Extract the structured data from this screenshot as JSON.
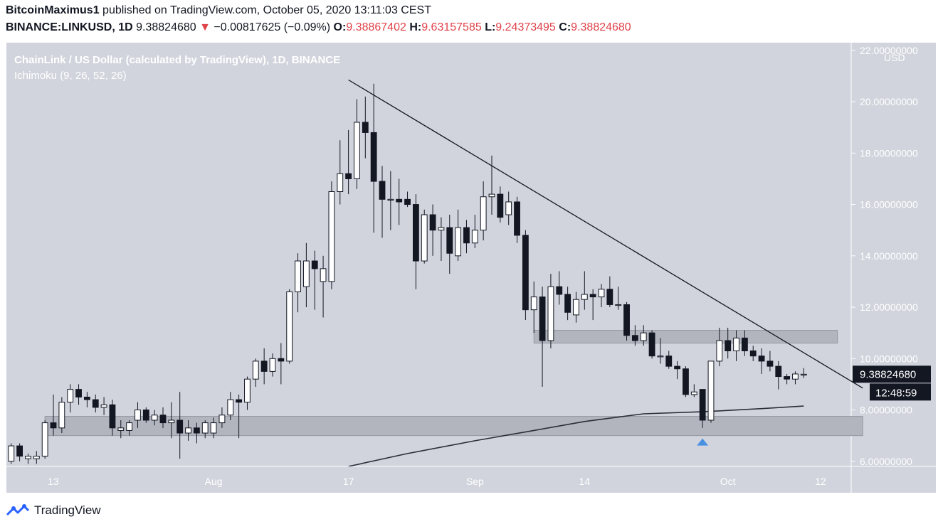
{
  "header": {
    "author": "BitcoinMaximus1",
    "published_text": "published on TradingView.com, October 05, 2020 13:11:03 CEST",
    "symbol": "BINANCE:LINKUSD, 1D",
    "last_price": "9.38824680",
    "change_arrow": "▼",
    "change": "−0.00817625 (−0.09%)",
    "open_label": "O:",
    "open": "9.38867402",
    "high_label": "H:",
    "high": "9.63157585",
    "low_label": "L:",
    "low": "9.24373495",
    "close_label": "C:",
    "close": "9.38824680"
  },
  "colors": {
    "panel_bg": "#d1d4dc",
    "up_candle": "#ffffff",
    "down_candle": "#131722",
    "zone_fill": "#b2b5be",
    "accent_red": "#e0424a",
    "arrow_blue": "#4a90e2",
    "price_label_bg": "#131722"
  },
  "footer": {
    "brand": "TradingView",
    "icon": "tradingview-logo-icon"
  },
  "chart_data": {
    "type": "candlestick",
    "title": "ChainLink / US Dollar (calculated by TradingView), 1D, BINANCE",
    "subtitle": "Ichimoku (9, 26, 52, 26)",
    "currency_label": "USD",
    "ylim": [
      5.8,
      22.3
    ],
    "y_ticks": [
      6,
      8,
      10,
      12,
      14,
      16,
      18,
      20,
      22
    ],
    "y_tick_labels": [
      "6.00000000",
      "8.00000000",
      "10.00000000",
      "12.00000000",
      "14.00000000",
      "16.00000000",
      "18.00000000",
      "20.00000000",
      "22.00000000"
    ],
    "x_ticks": [
      {
        "label": "13",
        "date": "2020-07-13"
      },
      {
        "label": "Aug",
        "date": "2020-08-01"
      },
      {
        "label": "17",
        "date": "2020-08-17"
      },
      {
        "label": "Sep",
        "date": "2020-09-01"
      },
      {
        "label": "14",
        "date": "2020-09-14"
      },
      {
        "label": "Oct",
        "date": "2020-10-01"
      },
      {
        "label": "12",
        "date": "2020-10-12"
      }
    ],
    "candles": [
      {
        "date": "2020-07-08",
        "o": 6.0,
        "h": 6.7,
        "l": 5.9,
        "c": 6.6
      },
      {
        "date": "2020-07-09",
        "o": 6.6,
        "h": 6.7,
        "l": 6.0,
        "c": 6.2
      },
      {
        "date": "2020-07-10",
        "o": 6.1,
        "h": 6.3,
        "l": 5.9,
        "c": 6.2
      },
      {
        "date": "2020-07-11",
        "o": 6.1,
        "h": 6.4,
        "l": 5.9,
        "c": 6.2
      },
      {
        "date": "2020-07-12",
        "o": 6.2,
        "h": 7.6,
        "l": 6.1,
        "c": 7.5
      },
      {
        "date": "2020-07-13",
        "o": 7.5,
        "h": 8.6,
        "l": 7.0,
        "c": 7.3
      },
      {
        "date": "2020-07-14",
        "o": 7.3,
        "h": 8.5,
        "l": 7.1,
        "c": 8.3
      },
      {
        "date": "2020-07-15",
        "o": 8.3,
        "h": 9.0,
        "l": 7.9,
        "c": 8.8
      },
      {
        "date": "2020-07-16",
        "o": 8.8,
        "h": 9.0,
        "l": 8.2,
        "c": 8.5
      },
      {
        "date": "2020-07-17",
        "o": 8.5,
        "h": 8.7,
        "l": 8.1,
        "c": 8.4
      },
      {
        "date": "2020-07-18",
        "o": 8.4,
        "h": 8.6,
        "l": 7.9,
        "c": 8.1
      },
      {
        "date": "2020-07-19",
        "o": 8.1,
        "h": 8.5,
        "l": 7.8,
        "c": 8.2
      },
      {
        "date": "2020-07-20",
        "o": 8.2,
        "h": 8.4,
        "l": 7.0,
        "c": 7.3
      },
      {
        "date": "2020-07-21",
        "o": 7.2,
        "h": 7.6,
        "l": 6.9,
        "c": 7.3
      },
      {
        "date": "2020-07-22",
        "o": 7.2,
        "h": 7.6,
        "l": 7.0,
        "c": 7.5
      },
      {
        "date": "2020-07-23",
        "o": 7.6,
        "h": 8.3,
        "l": 7.3,
        "c": 8.0
      },
      {
        "date": "2020-07-24",
        "o": 8.0,
        "h": 8.1,
        "l": 7.5,
        "c": 7.6
      },
      {
        "date": "2020-07-25",
        "o": 7.6,
        "h": 8.0,
        "l": 7.4,
        "c": 7.8
      },
      {
        "date": "2020-07-26",
        "o": 7.8,
        "h": 8.1,
        "l": 7.3,
        "c": 7.5
      },
      {
        "date": "2020-07-27",
        "o": 7.5,
        "h": 8.3,
        "l": 6.9,
        "c": 7.6
      },
      {
        "date": "2020-07-28",
        "o": 7.6,
        "h": 8.7,
        "l": 6.1,
        "c": 7.1
      },
      {
        "date": "2020-07-29",
        "o": 7.1,
        "h": 7.6,
        "l": 6.8,
        "c": 7.3
      },
      {
        "date": "2020-07-30",
        "o": 7.3,
        "h": 7.5,
        "l": 6.7,
        "c": 7.1
      },
      {
        "date": "2020-07-31",
        "o": 7.1,
        "h": 7.6,
        "l": 6.9,
        "c": 7.5
      },
      {
        "date": "2020-08-01",
        "o": 7.1,
        "h": 7.7,
        "l": 6.9,
        "c": 7.5
      },
      {
        "date": "2020-08-02",
        "o": 7.5,
        "h": 8.1,
        "l": 7.3,
        "c": 7.8
      },
      {
        "date": "2020-08-03",
        "o": 7.8,
        "h": 8.7,
        "l": 7.6,
        "c": 8.4
      },
      {
        "date": "2020-08-04",
        "o": 8.4,
        "h": 8.6,
        "l": 6.9,
        "c": 8.3
      },
      {
        "date": "2020-08-05",
        "o": 8.3,
        "h": 9.3,
        "l": 8.0,
        "c": 9.2
      },
      {
        "date": "2020-08-06",
        "o": 9.2,
        "h": 10.0,
        "l": 8.9,
        "c": 9.9
      },
      {
        "date": "2020-08-07",
        "o": 9.9,
        "h": 10.4,
        "l": 9.0,
        "c": 9.5
      },
      {
        "date": "2020-08-08",
        "o": 9.5,
        "h": 10.2,
        "l": 9.3,
        "c": 10.0
      },
      {
        "date": "2020-08-09",
        "o": 10.0,
        "h": 10.6,
        "l": 9.0,
        "c": 9.9
      },
      {
        "date": "2020-08-10",
        "o": 9.9,
        "h": 12.7,
        "l": 9.8,
        "c": 12.6
      },
      {
        "date": "2020-08-11",
        "o": 12.6,
        "h": 14.1,
        "l": 11.8,
        "c": 13.8
      },
      {
        "date": "2020-08-12",
        "o": 12.8,
        "h": 14.5,
        "l": 12.0,
        "c": 13.8
      },
      {
        "date": "2020-08-13",
        "o": 13.8,
        "h": 14.2,
        "l": 11.9,
        "c": 13.5
      },
      {
        "date": "2020-08-14",
        "o": 13.0,
        "h": 14.0,
        "l": 11.6,
        "c": 13.5
      },
      {
        "date": "2020-08-15",
        "o": 13.0,
        "h": 16.9,
        "l": 12.7,
        "c": 16.5
      },
      {
        "date": "2020-08-16",
        "o": 16.5,
        "h": 18.5,
        "l": 16.0,
        "c": 17.2
      },
      {
        "date": "2020-08-17",
        "o": 17.2,
        "h": 18.9,
        "l": 16.4,
        "c": 17.0
      },
      {
        "date": "2020-08-18",
        "o": 17.0,
        "h": 20.1,
        "l": 16.6,
        "c": 19.2
      },
      {
        "date": "2020-08-19",
        "o": 19.2,
        "h": 20.2,
        "l": 17.8,
        "c": 18.8
      },
      {
        "date": "2020-08-20",
        "o": 18.8,
        "h": 20.7,
        "l": 14.9,
        "c": 16.9
      },
      {
        "date": "2020-08-21",
        "o": 16.9,
        "h": 17.5,
        "l": 14.7,
        "c": 16.2
      },
      {
        "date": "2020-08-22",
        "o": 16.2,
        "h": 17.3,
        "l": 15.0,
        "c": 16.2
      },
      {
        "date": "2020-08-23",
        "o": 16.2,
        "h": 17.0,
        "l": 15.2,
        "c": 16.1
      },
      {
        "date": "2020-08-24",
        "o": 16.2,
        "h": 16.5,
        "l": 15.9,
        "c": 16.0
      },
      {
        "date": "2020-08-25",
        "o": 16.0,
        "h": 16.4,
        "l": 12.7,
        "c": 13.8
      },
      {
        "date": "2020-08-26",
        "o": 13.8,
        "h": 15.8,
        "l": 13.7,
        "c": 15.6
      },
      {
        "date": "2020-08-27",
        "o": 15.6,
        "h": 16.0,
        "l": 14.0,
        "c": 15.0
      },
      {
        "date": "2020-08-28",
        "o": 15.0,
        "h": 15.5,
        "l": 13.8,
        "c": 15.1
      },
      {
        "date": "2020-08-29",
        "o": 15.1,
        "h": 15.6,
        "l": 13.3,
        "c": 14.1
      },
      {
        "date": "2020-08-30",
        "o": 14.0,
        "h": 15.8,
        "l": 13.8,
        "c": 15.1
      },
      {
        "date": "2020-08-31",
        "o": 15.1,
        "h": 15.4,
        "l": 14.1,
        "c": 14.5
      },
      {
        "date": "2020-09-01",
        "o": 14.5,
        "h": 15.6,
        "l": 14.3,
        "c": 15.0
      },
      {
        "date": "2020-09-02",
        "o": 15.0,
        "h": 16.9,
        "l": 14.6,
        "c": 16.3
      },
      {
        "date": "2020-09-03",
        "o": 16.3,
        "h": 17.9,
        "l": 15.6,
        "c": 16.4
      },
      {
        "date": "2020-09-04",
        "o": 16.4,
        "h": 16.7,
        "l": 15.3,
        "c": 15.5
      },
      {
        "date": "2020-09-05",
        "o": 15.6,
        "h": 16.5,
        "l": 15.2,
        "c": 16.1
      },
      {
        "date": "2020-09-06",
        "o": 16.1,
        "h": 16.3,
        "l": 14.5,
        "c": 14.8
      },
      {
        "date": "2020-09-07",
        "o": 14.8,
        "h": 15.0,
        "l": 11.5,
        "c": 11.9
      },
      {
        "date": "2020-09-08",
        "o": 11.9,
        "h": 13.0,
        "l": 11.0,
        "c": 12.4
      },
      {
        "date": "2020-09-09",
        "o": 12.4,
        "h": 12.8,
        "l": 8.9,
        "c": 10.7
      },
      {
        "date": "2020-09-10",
        "o": 10.7,
        "h": 13.3,
        "l": 10.4,
        "c": 12.8
      },
      {
        "date": "2020-09-11",
        "o": 12.8,
        "h": 13.4,
        "l": 12.1,
        "c": 12.5
      },
      {
        "date": "2020-09-12",
        "o": 12.5,
        "h": 12.8,
        "l": 11.5,
        "c": 11.8
      },
      {
        "date": "2020-09-13",
        "o": 11.7,
        "h": 12.6,
        "l": 11.4,
        "c": 12.3
      },
      {
        "date": "2020-09-14",
        "o": 12.3,
        "h": 13.4,
        "l": 11.9,
        "c": 12.5
      },
      {
        "date": "2020-09-15",
        "o": 12.5,
        "h": 12.7,
        "l": 11.5,
        "c": 12.4
      },
      {
        "date": "2020-09-16",
        "o": 12.4,
        "h": 12.9,
        "l": 12.0,
        "c": 12.7
      },
      {
        "date": "2020-09-17",
        "o": 12.7,
        "h": 13.2,
        "l": 12.0,
        "c": 12.1
      },
      {
        "date": "2020-09-18",
        "o": 12.1,
        "h": 12.8,
        "l": 11.9,
        "c": 12.1
      },
      {
        "date": "2020-09-19",
        "o": 12.1,
        "h": 12.2,
        "l": 10.7,
        "c": 10.9
      },
      {
        "date": "2020-09-20",
        "o": 10.9,
        "h": 11.3,
        "l": 10.5,
        "c": 10.7
      },
      {
        "date": "2020-09-21",
        "o": 10.7,
        "h": 11.3,
        "l": 10.5,
        "c": 11.0
      },
      {
        "date": "2020-09-22",
        "o": 11.0,
        "h": 11.1,
        "l": 10.0,
        "c": 10.1
      },
      {
        "date": "2020-09-23",
        "o": 10.1,
        "h": 10.8,
        "l": 9.8,
        "c": 10.1
      },
      {
        "date": "2020-09-24",
        "o": 10.1,
        "h": 10.3,
        "l": 9.6,
        "c": 9.7
      },
      {
        "date": "2020-09-25",
        "o": 9.7,
        "h": 9.9,
        "l": 9.2,
        "c": 9.6
      },
      {
        "date": "2020-09-26",
        "o": 9.6,
        "h": 9.7,
        "l": 8.5,
        "c": 8.6
      },
      {
        "date": "2020-09-27",
        "o": 8.6,
        "h": 9.0,
        "l": 8.5,
        "c": 8.7
      },
      {
        "date": "2020-09-28",
        "o": 8.8,
        "h": 8.8,
        "l": 7.3,
        "c": 7.6
      },
      {
        "date": "2020-09-29",
        "o": 7.6,
        "h": 9.9,
        "l": 7.5,
        "c": 9.9
      },
      {
        "date": "2020-09-30",
        "o": 9.9,
        "h": 11.2,
        "l": 9.7,
        "c": 10.7
      },
      {
        "date": "2020-10-01",
        "o": 10.7,
        "h": 11.2,
        "l": 10.0,
        "c": 10.3
      },
      {
        "date": "2020-10-02",
        "o": 10.3,
        "h": 11.1,
        "l": 9.9,
        "c": 10.8
      },
      {
        "date": "2020-10-03",
        "o": 10.8,
        "h": 11.1,
        "l": 10.1,
        "c": 10.3
      },
      {
        "date": "2020-10-04",
        "o": 10.3,
        "h": 10.5,
        "l": 9.9,
        "c": 10.1
      },
      {
        "date": "2020-10-05",
        "o": 10.1,
        "h": 10.4,
        "l": 9.4,
        "c": 9.9
      },
      {
        "date": "2020-10-06",
        "o": 9.9,
        "h": 10.3,
        "l": 9.5,
        "c": 9.7
      },
      {
        "date": "2020-10-07",
        "o": 9.7,
        "h": 9.9,
        "l": 8.8,
        "c": 9.3
      },
      {
        "date": "2020-10-08",
        "o": 9.3,
        "h": 9.4,
        "l": 9.0,
        "c": 9.2
      },
      {
        "date": "2020-10-09",
        "o": 9.2,
        "h": 9.5,
        "l": 9.0,
        "c": 9.4
      },
      {
        "date": "2020-10-10",
        "o": 9.39,
        "h": 9.63,
        "l": 9.24,
        "c": 9.39
      }
    ],
    "zones": [
      {
        "start": "2020-07-12",
        "end": "2020-10-17",
        "low": 7.0,
        "high": 7.75
      },
      {
        "start": "2020-09-08",
        "end": "2020-10-14",
        "low": 10.6,
        "high": 11.1
      }
    ],
    "trendline": {
      "start": {
        "date": "2020-08-17",
        "y": 20.85
      },
      "end": {
        "date": "2020-10-17",
        "y": 8.85
      }
    },
    "ichimoku_line": [
      {
        "date": "2020-08-17",
        "y": 5.8
      },
      {
        "date": "2020-08-24",
        "y": 6.3
      },
      {
        "date": "2020-09-01",
        "y": 6.8
      },
      {
        "date": "2020-09-08",
        "y": 7.2
      },
      {
        "date": "2020-09-14",
        "y": 7.55
      },
      {
        "date": "2020-09-21",
        "y": 7.85
      },
      {
        "date": "2020-09-28",
        "y": 7.93
      },
      {
        "date": "2020-10-05",
        "y": 8.05
      },
      {
        "date": "2020-10-10",
        "y": 8.15
      }
    ],
    "marker": {
      "date": "2020-09-28",
      "y": 6.78,
      "shape": "up-arrow"
    },
    "price_label": {
      "value": "9.38824680",
      "y": 9.39
    },
    "countdown_label": "12:48:59"
  }
}
